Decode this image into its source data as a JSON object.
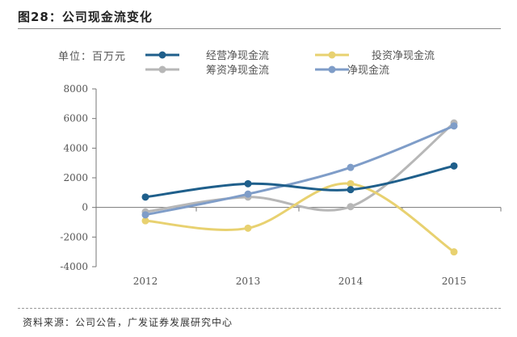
{
  "page": {
    "title": "图28：公司现金流变化",
    "unit_label": "单位：百万元",
    "source": "资料来源：公司公告，广发证券发展研究中心"
  },
  "chart_data": {
    "type": "line",
    "title": "",
    "xlabel": "",
    "ylabel": "",
    "unit": "百万元",
    "categories": [
      "2012",
      "2013",
      "2014",
      "2015"
    ],
    "ylim": [
      -4000,
      8000
    ],
    "yticks": [
      8000,
      6000,
      4000,
      2000,
      0,
      -2000,
      -4000
    ],
    "grid": false,
    "smooth": true,
    "legend_position": "top",
    "series": [
      {
        "name": "经营净现金流",
        "color": "#1f5f8b",
        "values": [
          700,
          1600,
          1200,
          2800
        ]
      },
      {
        "name": "投资净现金流",
        "color": "#e8d170",
        "values": [
          -900,
          -1400,
          1600,
          -3000
        ]
      },
      {
        "name": "筹资净现金流",
        "color": "#b7b7b7",
        "values": [
          -300,
          700,
          50,
          5700
        ]
      },
      {
        "name": "净现金流",
        "color": "#7f9dc8",
        "values": [
          -500,
          900,
          2700,
          5500
        ]
      }
    ]
  }
}
